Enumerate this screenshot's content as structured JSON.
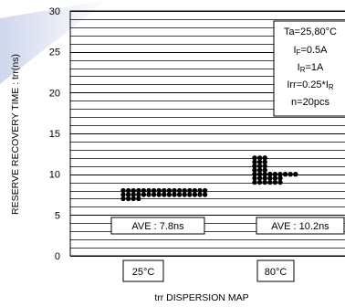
{
  "chart_data": {
    "type": "scatter",
    "ylabel": "RESERVE RECOVERY TIME : trr(ns)",
    "xlabel": "trr DISPERSION MAP",
    "ylim": [
      0,
      30
    ],
    "yticks": [
      0,
      5,
      10,
      15,
      20,
      25,
      30
    ],
    "grid": true,
    "groups": [
      {
        "label": "25°C",
        "average_label": "AVE : 7.8ns",
        "rows": [
          {
            "value": 7,
            "count": 4
          },
          {
            "value": 7.5,
            "count": 17
          },
          {
            "value": 8,
            "count": 17
          }
        ]
      },
      {
        "label": "80°C",
        "average_label": "AVE : 10.2ns",
        "rows": [
          {
            "value": 9,
            "count": 6
          },
          {
            "value": 9.5,
            "count": 6
          },
          {
            "value": 10,
            "count": 9
          },
          {
            "value": 10.5,
            "count": 3
          },
          {
            "value": 11,
            "count": 3
          },
          {
            "value": 11.5,
            "count": 3
          },
          {
            "value": 12,
            "count": 3
          }
        ]
      }
    ],
    "conditions": {
      "ta": "Ta=25,80°C",
      "if_main": "I",
      "if_sub": "F",
      "if_val": "=0.5A",
      "ir_main": "I",
      "ir_sub": "R",
      "ir_val": "=1A",
      "irr_main": "Irr=0.25*I",
      "irr_sub": "R",
      "n": "n=20pcs"
    }
  }
}
